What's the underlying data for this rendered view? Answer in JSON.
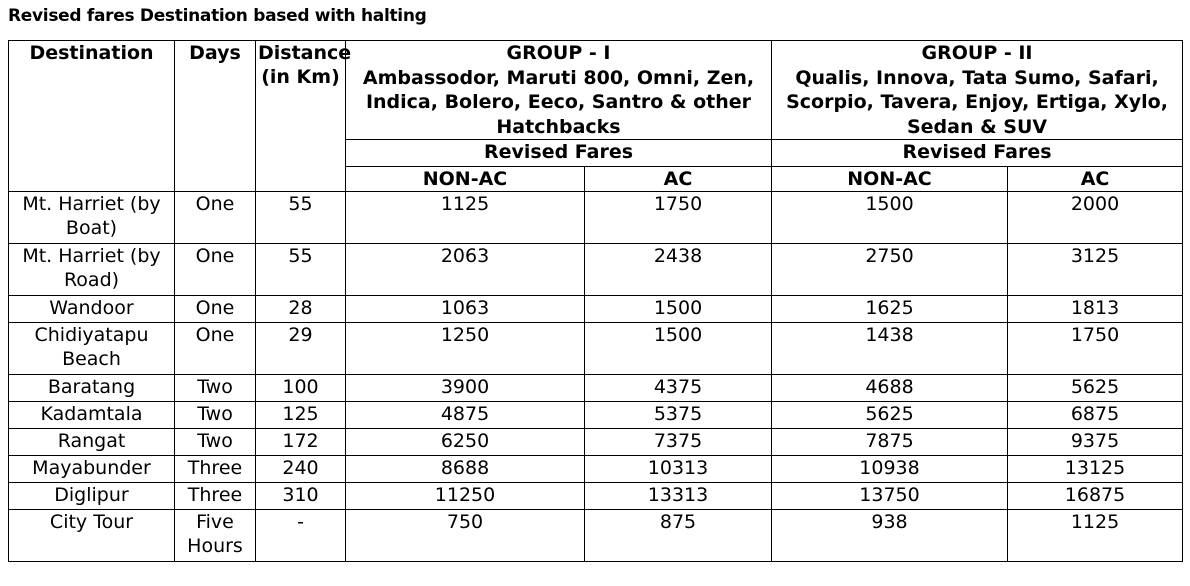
{
  "title": "Revised fares Destination based with halting",
  "headers": {
    "destination": "Destination",
    "days": "Days",
    "distance": "Distance (in Km)",
    "group1": {
      "name": "GROUP - I",
      "models": "Ambassodor, Maruti 800, Omni, Zen, Indica, Bolero, Eeco, Santro & other Hatchbacks",
      "revised_fares": "Revised Fares",
      "non_ac": "NON-AC",
      "ac": "AC"
    },
    "group2": {
      "name": "GROUP - II",
      "models": "Qualis, Innova, Tata Sumo, Safari, Scorpio, Tavera, Enjoy, Ertiga, Xylo, Sedan & SUV",
      "revised_fares": "Revised Fares",
      "non_ac": "NON-AC",
      "ac": "AC"
    }
  },
  "rows": [
    {
      "destination": "Mt. Harriet (by Boat)",
      "days": "One",
      "distance": "55",
      "g1_non_ac": "1125",
      "g1_ac": "1750",
      "g2_non_ac": "1500",
      "g2_ac": "2000"
    },
    {
      "destination": "Mt. Harriet (by Road)",
      "days": "One",
      "distance": "55",
      "g1_non_ac": "2063",
      "g1_ac": "2438",
      "g2_non_ac": "2750",
      "g2_ac": "3125"
    },
    {
      "destination": "Wandoor",
      "days": "One",
      "distance": "28",
      "g1_non_ac": "1063",
      "g1_ac": "1500",
      "g2_non_ac": "1625",
      "g2_ac": "1813"
    },
    {
      "destination": "Chidiyatapu Beach",
      "days": "One",
      "distance": "29",
      "g1_non_ac": "1250",
      "g1_ac": "1500",
      "g2_non_ac": "1438",
      "g2_ac": "1750"
    },
    {
      "destination": "Baratang",
      "days": "Two",
      "distance": "100",
      "g1_non_ac": "3900",
      "g1_ac": "4375",
      "g2_non_ac": "4688",
      "g2_ac": "5625"
    },
    {
      "destination": "Kadamtala",
      "days": "Two",
      "distance": "125",
      "g1_non_ac": "4875",
      "g1_ac": "5375",
      "g2_non_ac": "5625",
      "g2_ac": "6875"
    },
    {
      "destination": "Rangat",
      "days": "Two",
      "distance": "172",
      "g1_non_ac": "6250",
      "g1_ac": "7375",
      "g2_non_ac": "7875",
      "g2_ac": "9375"
    },
    {
      "destination": "Mayabunder",
      "days": "Three",
      "distance": "240",
      "g1_non_ac": "8688",
      "g1_ac": "10313",
      "g2_non_ac": "10938",
      "g2_ac": "13125"
    },
    {
      "destination": "Diglipur",
      "days": "Three",
      "distance": "310",
      "g1_non_ac": "11250",
      "g1_ac": "13313",
      "g2_non_ac": "13750",
      "g2_ac": "16875"
    },
    {
      "destination": "City Tour",
      "days": "Five Hours",
      "distance": "-",
      "g1_non_ac": "750",
      "g1_ac": "875",
      "g2_non_ac": "938",
      "g2_ac": "1125"
    }
  ]
}
